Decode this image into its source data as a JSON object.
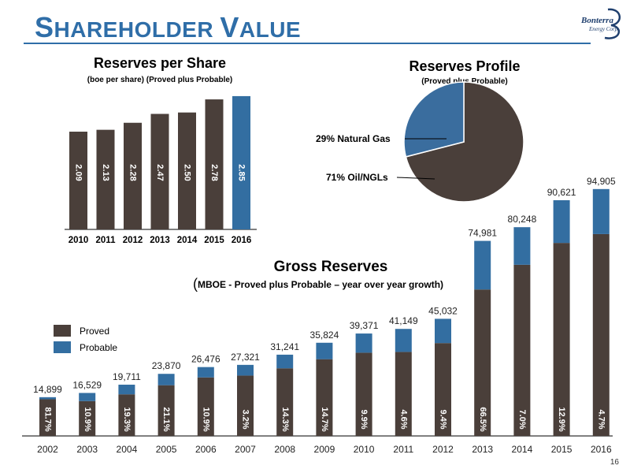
{
  "slide": {
    "title_lead": "S",
    "title_rest_1": "HAREHOLDER ",
    "title_lead_2": "V",
    "title_rest_2": "ALUE",
    "page_number": "16"
  },
  "logo": {
    "name": "Bonterra",
    "sub": "Energy Corp."
  },
  "colors": {
    "title": "#2f6ea8",
    "proved": "#4a3f3a",
    "probable": "#336ea1",
    "pie_gas": "#3a6d9e",
    "pie_oil": "#4a3f3a"
  },
  "chart_data": [
    {
      "type": "bar",
      "title": "Reserves per Share",
      "subtitle": "(boe per share) (Proved plus Probable)",
      "categories": [
        "2010",
        "2011",
        "2012",
        "2013",
        "2014",
        "2015",
        "2016"
      ],
      "values": [
        2.09,
        2.13,
        2.28,
        2.47,
        2.5,
        2.78,
        2.85
      ],
      "value_labels": [
        "2.09",
        "2.13",
        "2.28",
        "2.47",
        "2.50",
        "2.78",
        "2.85"
      ],
      "highlight_index": 6,
      "colors": {
        "bar": "#4a3f3a",
        "highlight": "#336ea1"
      },
      "grid": false
    },
    {
      "type": "pie",
      "title": "Reserves Profile",
      "subtitle": "(Proved plus Probable)",
      "slices": [
        {
          "label": "29% Natural Gas",
          "value": 29,
          "color": "#3a6d9e"
        },
        {
          "label": "71% Oil/NGLs",
          "value": 71,
          "color": "#4a3f3a"
        }
      ]
    },
    {
      "type": "bar",
      "stacked": true,
      "title": "Gross Reserves",
      "subtitle": "MBOE - Proved plus Probable – year over year growth)",
      "subtitle_open_paren": "(",
      "categories": [
        "2002",
        "2003",
        "2004",
        "2005",
        "2006",
        "2007",
        "2008",
        "2009",
        "2010",
        "2011",
        "2012",
        "2013",
        "2014",
        "2015",
        "2016"
      ],
      "totals": [
        14899,
        16529,
        19711,
        23870,
        26476,
        27321,
        31241,
        35824,
        39371,
        41149,
        45032,
        74981,
        80248,
        90621,
        94905
      ],
      "total_labels": [
        "14,899",
        "16,529",
        "19,711",
        "23,870",
        "26,476",
        "27,321",
        "31,241",
        "35,824",
        "39,371",
        "41,149",
        "45,032",
        "74,981",
        "80,248",
        "90,621",
        "94,905"
      ],
      "growth_labels": [
        "81.7%",
        "10.9%",
        "19.3%",
        "21.1%",
        "10.9%",
        "3.2%",
        "14.3%",
        "14.7%",
        "9.9%",
        "4.6%",
        "9.4%",
        "66.5%",
        "7.0%",
        "12.9%",
        "4.7%"
      ],
      "series": [
        {
          "name": "Proved",
          "values": [
            14100,
            13400,
            16000,
            19500,
            22500,
            23200,
            26000,
            29500,
            32000,
            32300,
            35700,
            56300,
            65800,
            74200,
            77600
          ]
        },
        {
          "name": "Probable",
          "values": [
            799,
            3129,
            3711,
            4370,
            3976,
            4121,
            5241,
            6324,
            7371,
            8849,
            9332,
            18681,
            14448,
            16421,
            17305
          ]
        }
      ],
      "legend": {
        "position": "top-left"
      },
      "grid": false
    }
  ]
}
